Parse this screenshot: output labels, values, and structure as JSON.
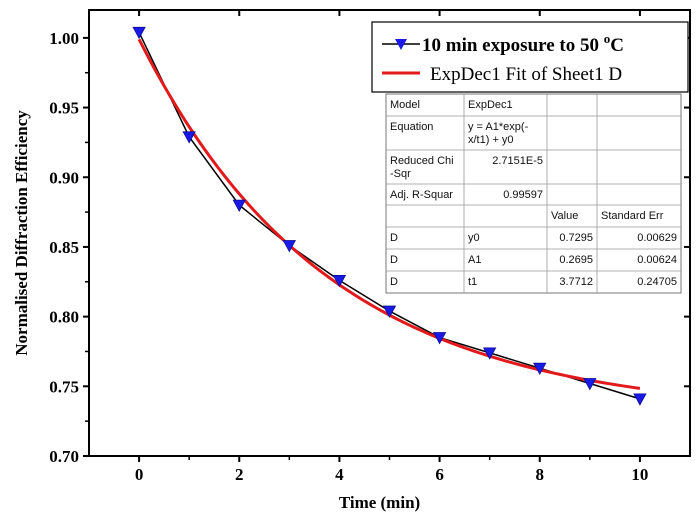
{
  "chart_data": {
    "type": "line",
    "xlabel": "Time (min)",
    "ylabel": "Normalised Diffraction Efficiency",
    "xlim": [
      -1,
      11
    ],
    "ylim": [
      0.7,
      1.02
    ],
    "x_ticks": [
      "0",
      "2",
      "4",
      "6",
      "8",
      "10"
    ],
    "y_ticks": [
      "0.70",
      "0.75",
      "0.80",
      "0.85",
      "0.90",
      "0.95",
      "1.00"
    ],
    "series": [
      {
        "name": "10 min exposure to 50 °C",
        "style": "line-with-triangle-markers",
        "color": "#000000",
        "marker_color": "#1a1ae6",
        "x": [
          0,
          1,
          2,
          3,
          4,
          5,
          6,
          7,
          8,
          9,
          10
        ],
        "y": [
          1.004,
          0.929,
          0.88,
          0.851,
          0.826,
          0.804,
          0.785,
          0.774,
          0.763,
          0.752,
          0.741
        ]
      },
      {
        "name": "ExpDec1 Fit of Sheet1 D",
        "style": "fit-curve",
        "color": "#e31a1c",
        "model": {
          "y0": 0.7295,
          "A1": 0.2695,
          "t1": 3.7712
        }
      }
    ],
    "legend": {
      "placement": "top-right",
      "entry1_prefix": "10 min exposure to 50 ",
      "entry1_sup": "o",
      "entry1_suffix": "C",
      "entry2": "ExpDec1 Fit of Sheet1 D"
    },
    "fit_table": {
      "rows": [
        [
          "Model",
          "ExpDec1",
          "",
          ""
        ],
        [
          "Equation",
          "y = A1*exp(-\nx/t1) + y0",
          "",
          ""
        ],
        [
          "Reduced Chi\n-Sqr",
          "2.7151E-5",
          "",
          ""
        ],
        [
          "Adj. R-Squar",
          "0.99597",
          "",
          ""
        ],
        [
          "",
          "",
          "Value",
          "Standard Err"
        ],
        [
          "D",
          "y0",
          "0.7295",
          "0.00629"
        ],
        [
          "D",
          "A1",
          "0.2695",
          "0.00624"
        ],
        [
          "D",
          "t1",
          "3.7712",
          "0.24705"
        ]
      ]
    },
    "grid": false
  }
}
